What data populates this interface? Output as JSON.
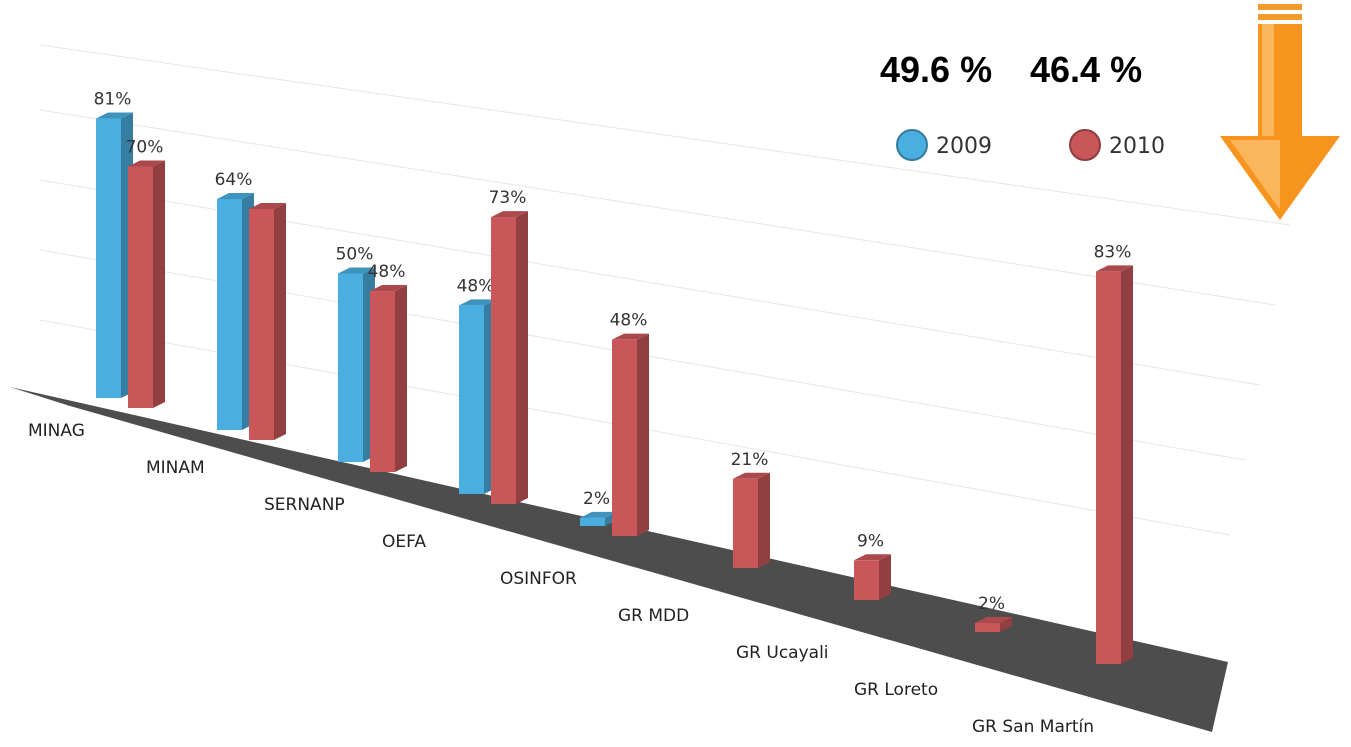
{
  "chart_data": {
    "type": "bar",
    "annotations": [
      "49.6 %",
      "46.4 %"
    ],
    "categories": [
      "MINAG",
      "MINAM",
      "SERNANP",
      "OEFA",
      "OSINFOR",
      "GR MDD",
      "GR Ucayali",
      "GR Loreto",
      "GR San Martín"
    ],
    "series": [
      {
        "name": "2009",
        "color": "#4aaee0",
        "values": [
          81,
          64,
          50,
          48,
          2,
          null,
          null,
          null,
          null
        ],
        "value_labels": [
          "81%",
          "64%",
          "50%",
          "48%",
          "2%",
          null,
          null,
          null,
          null
        ]
      },
      {
        "name": "2010",
        "color": "#c9575a",
        "values": [
          70,
          64,
          48,
          73,
          48,
          21,
          9,
          2,
          83
        ],
        "value_labels": [
          "70%",
          null,
          "48%",
          "73%",
          "48%",
          "21%",
          "9%",
          "2%",
          "83%"
        ]
      }
    ],
    "ylim": [
      0,
      100
    ]
  }
}
